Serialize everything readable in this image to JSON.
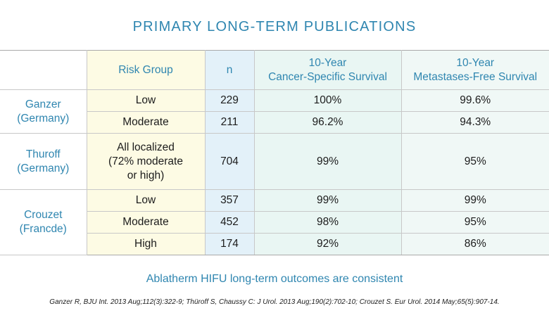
{
  "title": "PRIMARY LONG-TERM PUBLICATIONS",
  "header": {
    "study": "",
    "risk_group": "Risk Group",
    "n": "n",
    "cancer_specific_line1": "10-Year",
    "cancer_specific_line2": "Cancer-Specific Survival",
    "metastases_free_line1": "10-Year",
    "metastases_free_line2": "Metastases-Free Survival"
  },
  "studies": [
    {
      "name_line1": "Ganzer",
      "name_line2": "(Germany)",
      "rows": [
        {
          "risk": "Low",
          "n": "229",
          "cancer_specific": "100%",
          "metastases_free": "99.6%"
        },
        {
          "risk": "Moderate",
          "n": "211",
          "cancer_specific": "96.2%",
          "metastases_free": "94.3%"
        }
      ]
    },
    {
      "name_line1": "Thuroff",
      "name_line2": "(Germany)",
      "rows": [
        {
          "risk_line1": "All localized",
          "risk_line2": "(72% moderate",
          "risk_line3": "or high)",
          "n": "704",
          "cancer_specific": "99%",
          "metastases_free": "95%"
        }
      ]
    },
    {
      "name_line1": "Crouzet",
      "name_line2": "(Francde)",
      "rows": [
        {
          "risk": "Low",
          "n": "357",
          "cancer_specific": "99%",
          "metastases_free": "99%"
        },
        {
          "risk": "Moderate",
          "n": "452",
          "cancer_specific": "98%",
          "metastases_free": "95%"
        },
        {
          "risk": "High",
          "n": "174",
          "cancer_specific": "92%",
          "metastases_free": "86%"
        }
      ]
    }
  ],
  "footer": "Ablatherm HIFU long-term outcomes are consistent",
  "citation": "Ganzer R, BJU Int. 2013 Aug;112(3):322-9; Thüroff S, Chaussy C: J Urol. 2013 Aug;190(2):702-10; Crouzet S. Eur Urol. 2014 May;65(5):907-14."
}
